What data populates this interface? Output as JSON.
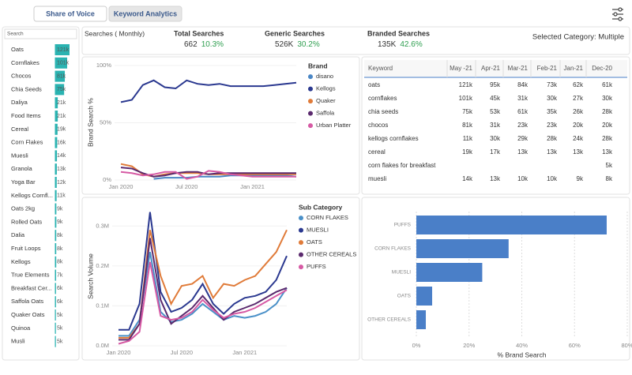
{
  "tabs": [
    "Share of Voice",
    "Keyword Analytics"
  ],
  "sidebar": {
    "search_placeholder": "Search",
    "items": [
      "Oats",
      "Cornflakes",
      "Chocos",
      "Chia Seeds",
      "Daliya",
      "Food Items",
      "Cereal",
      "Corn Flakes",
      "Muesli",
      "Granola",
      "Yoga Bar",
      "Kellogs Cornfl...",
      "Oats 2kg",
      "Rolled Oats",
      "Dalia",
      "Fruit Loops",
      "Kellogs",
      "True Elements",
      "Breakfast Cer...",
      "Saffola Oats",
      "Quaker Oats",
      "Quinoa",
      "Musli"
    ],
    "values": [
      121,
      101,
      81,
      75,
      21,
      21,
      19,
      16,
      14,
      13,
      12,
      11,
      9,
      9,
      8,
      8,
      8,
      7,
      6,
      6,
      5,
      5,
      5
    ],
    "value_labels": [
      "121k",
      "101k",
      "81k",
      "75k",
      "21k",
      "21k",
      "19k",
      "16k",
      "14k",
      "13k",
      "12k",
      "11k",
      "9k",
      "9k",
      "8k",
      "8k",
      "8k",
      "7k",
      "6k",
      "6k",
      "5k",
      "5k",
      "5k"
    ],
    "color": "#2ab3b1"
  },
  "kpis": {
    "title": "Searches ( Monthly)",
    "items": [
      {
        "label": "Total Searches",
        "value": "662",
        "change": "10.3%"
      },
      {
        "label": "Generic Searches",
        "value": "526K",
        "change": "30.2%"
      },
      {
        "label": "Branded Searches",
        "value": "135K",
        "change": "42.6%"
      }
    ],
    "selected_category": "Selected Category: Multiple"
  },
  "table": {
    "columns": [
      "Keyword",
      "May -21",
      "Apr-21",
      "Mar-21",
      "Feb-21",
      "Jan-21",
      "Dec-20"
    ],
    "rows": [
      [
        "oats",
        "121k",
        "95k",
        "84k",
        "73k",
        "62k",
        "61k"
      ],
      [
        "cornflakes",
        "101k",
        "45k",
        "31k",
        "30k",
        "27k",
        "30k"
      ],
      [
        "chia seeds",
        "75k",
        "53k",
        "61k",
        "35k",
        "26k",
        "28k"
      ],
      [
        "chocos",
        "81k",
        "31k",
        "23k",
        "23k",
        "20k",
        "20k"
      ],
      [
        "kellogs cornflakes",
        "11k",
        "30k",
        "29k",
        "28k",
        "24k",
        "28k"
      ],
      [
        "cereal",
        "19k",
        "17k",
        "13k",
        "13k",
        "13k",
        "13k"
      ],
      [
        "corn flakes for breakfast",
        null,
        null,
        null,
        null,
        null,
        "5k"
      ],
      [
        "muesli",
        "14k",
        "13k",
        "10k",
        "10k",
        "9k",
        "8k"
      ]
    ]
  },
  "charts": [
    {
      "type": "line",
      "y_label": "Brand Search %",
      "legend_title": "Brand",
      "x": [
        "2020-01",
        "2020-02",
        "2020-03",
        "2020-04",
        "2020-05",
        "2020-06",
        "2020-07",
        "2020-08",
        "2020-09",
        "2020-10",
        "2020-11",
        "2020-12",
        "2021-01",
        "2021-02",
        "2021-03",
        "2021-04",
        "2021-05"
      ],
      "xlim": [
        "2020-01",
        "2021-05"
      ],
      "xticks": [
        {
          "value": "2020-01",
          "label": "Jan 2020"
        },
        {
          "value": "2020-07",
          "label": "Jul 2020"
        },
        {
          "value": "2021-01",
          "label": "Jan 2021"
        }
      ],
      "ylim": [
        0,
        100
      ],
      "yticks": [
        {
          "value": 0,
          "label": "0%"
        },
        {
          "value": 50,
          "label": "50%"
        },
        {
          "value": 100,
          "label": "100%"
        }
      ],
      "grid": true,
      "series": [
        {
          "name": "disano",
          "color": "#4a86c5",
          "values": [
            null,
            null,
            null,
            1,
            2,
            2,
            2,
            3,
            3,
            3,
            4,
            4,
            4,
            4,
            4,
            4,
            3
          ]
        },
        {
          "name": "Kellogs",
          "color": "#2b3990",
          "values": [
            68,
            70,
            83,
            87,
            81,
            80,
            87,
            84,
            83,
            84,
            82,
            82,
            82,
            82,
            83,
            84,
            85
          ]
        },
        {
          "name": "Quaker",
          "color": "#e07b39",
          "values": [
            14,
            12,
            5,
            3,
            5,
            6,
            6,
            6,
            5,
            5,
            5,
            5,
            5,
            5,
            5,
            5,
            5
          ]
        },
        {
          "name": "Saffola",
          "color": "#5b2a6e",
          "values": [
            11,
            10,
            6,
            3,
            4,
            6,
            7,
            7,
            5,
            6,
            6,
            6,
            6,
            6,
            6,
            6,
            6
          ]
        },
        {
          "name": "Urban Platter",
          "color": "#d65aa4",
          "values": [
            7,
            6,
            4,
            5,
            7,
            7,
            1,
            3,
            8,
            7,
            5,
            4,
            3,
            3,
            3,
            3,
            3
          ]
        }
      ]
    },
    {
      "type": "line",
      "y_label": "Search Volume",
      "legend_title": "Sub Category",
      "x": [
        "2020-01",
        "2020-02",
        "2020-03",
        "2020-04",
        "2020-05",
        "2020-06",
        "2020-07",
        "2020-08",
        "2020-09",
        "2020-10",
        "2020-11",
        "2020-12",
        "2021-01",
        "2021-02",
        "2021-03",
        "2021-04",
        "2021-05"
      ],
      "xlim": [
        "2020-01",
        "2021-05"
      ],
      "xticks": [
        {
          "value": "2020-01",
          "label": "Jan 2020"
        },
        {
          "value": "2020-07",
          "label": "Jul 2020"
        },
        {
          "value": "2021-01",
          "label": "Jan 2021"
        }
      ],
      "ylim": [
        0,
        0.35
      ],
      "yticks": [
        {
          "value": 0,
          "label": "0.0M"
        },
        {
          "value": 0.1,
          "label": "0.1M"
        },
        {
          "value": 0.2,
          "label": "0.2M"
        },
        {
          "value": 0.3,
          "label": "0.3M"
        }
      ],
      "grid": true,
      "series": [
        {
          "name": "CORN FLAKES",
          "color": "#4a90c8",
          "values": [
            0.025,
            0.025,
            0.065,
            0.235,
            0.085,
            0.06,
            0.065,
            0.08,
            0.105,
            0.085,
            0.065,
            0.075,
            0.07,
            0.075,
            0.085,
            0.105,
            0.145
          ]
        },
        {
          "name": "MUESLI",
          "color": "#2b3990",
          "values": [
            0.04,
            0.04,
            0.105,
            0.335,
            0.135,
            0.085,
            0.095,
            0.115,
            0.155,
            0.105,
            0.08,
            0.105,
            0.12,
            0.125,
            0.135,
            0.165,
            0.225
          ]
        },
        {
          "name": "OATS",
          "color": "#e07b39",
          "values": [
            0.02,
            0.02,
            0.055,
            0.29,
            0.175,
            0.105,
            0.15,
            0.155,
            0.175,
            0.12,
            0.155,
            0.15,
            0.165,
            0.175,
            0.205,
            0.235,
            0.29
          ]
        },
        {
          "name": "OTHER CEREALS",
          "color": "#5b2a6e",
          "values": [
            0.015,
            0.015,
            0.055,
            0.27,
            0.115,
            0.055,
            0.075,
            0.095,
            0.125,
            0.095,
            0.065,
            0.085,
            0.095,
            0.105,
            0.12,
            0.135,
            0.145
          ]
        },
        {
          "name": "PUFFS",
          "color": "#d65aa4",
          "values": [
            0.005,
            0.012,
            0.035,
            0.21,
            0.075,
            0.065,
            0.07,
            0.085,
            0.115,
            0.09,
            0.07,
            0.08,
            0.085,
            0.095,
            0.11,
            0.125,
            0.14
          ]
        }
      ]
    },
    {
      "type": "barh",
      "x_label": "% Brand Search",
      "categories": [
        "PUFFS",
        "CORN FLAKES",
        "MUESLI",
        "OATS",
        "OTHER CEREALS"
      ],
      "values": [
        72.2,
        35,
        25,
        6,
        3.6
      ],
      "color": "#4a7fc8",
      "xlim": [
        0,
        80
      ],
      "xticks": [
        {
          "value": 0,
          "label": "0%"
        },
        {
          "value": 20,
          "label": "20%"
        },
        {
          "value": 40,
          "label": "40%"
        },
        {
          "value": 60,
          "label": "60%"
        },
        {
          "value": 80,
          "label": "80%"
        }
      ],
      "grid": true
    }
  ]
}
